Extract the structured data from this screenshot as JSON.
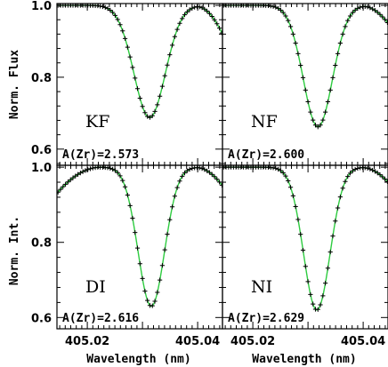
{
  "chart_data": {
    "type": "line",
    "x_axis_label": "Wavelength (nm)",
    "x_ticks": [
      "405.02",
      "405.04"
    ],
    "x_tick_values": [
      405.02,
      405.04
    ],
    "xlim": [
      405.0145,
      405.0445
    ],
    "y_ticks": [
      "0.6",
      "0.8",
      "1.0"
    ],
    "y_tick_values": [
      0.6,
      0.8,
      1.0
    ],
    "ylim_top_row": [
      0.555,
      1.005
    ],
    "ylim_bottom_row": [
      0.57,
      1.005
    ],
    "colors": {
      "model": "#2ecc40",
      "observed": "#000000",
      "axes": "#000000"
    },
    "panels": [
      {
        "id": "KF",
        "label": "KF",
        "abundance_text": "A(Zr)=2.573",
        "y_axis_label": "Norm. Flux",
        "line_center": 405.0313,
        "depth": 0.312,
        "sigma": 0.00285,
        "wing_droop_right": 0.08
      },
      {
        "id": "NF",
        "label": "NF",
        "abundance_text": "A(Zr)=2.600",
        "y_axis_label": "",
        "line_center": 405.0318,
        "depth": 0.338,
        "sigma": 0.00265,
        "wing_droop_right": 0.05
      },
      {
        "id": "DI",
        "label": "DI",
        "abundance_text": "A(Zr)=2.616",
        "y_axis_label": "Norm. Int.",
        "line_center": 405.0316,
        "depth": 0.37,
        "sigma": 0.0024,
        "wing_droop_left": 0.07,
        "wing_droop_right": 0.05
      },
      {
        "id": "NI",
        "label": "NI",
        "abundance_text": "A(Zr)=2.629",
        "y_axis_label": "",
        "line_center": 405.0316,
        "depth": 0.38,
        "sigma": 0.0024,
        "wing_droop_right": 0.04
      }
    ]
  }
}
